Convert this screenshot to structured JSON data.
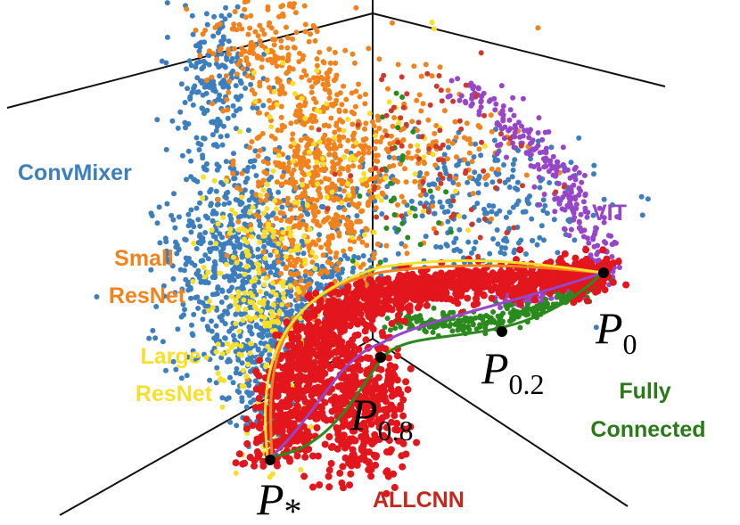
{
  "chart_data": {
    "type": "scatter",
    "projection": "3d",
    "grid": false,
    "series": [
      {
        "name": "ConvMixer",
        "color": "#3d7ebd"
      },
      {
        "name": "Small ResNet",
        "color": "#f2831c"
      },
      {
        "name": "Large ResNet",
        "color": "#f7df2a"
      },
      {
        "name": "VIT",
        "color": "#9745c9"
      },
      {
        "name": "Fully Connected",
        "color": "#2a8a1e"
      },
      {
        "name": "ALLCNN",
        "color": "#e2161c"
      }
    ],
    "extra_point_color": "#cd3a2a",
    "series_label_lines": {
      "convmixer": [
        "ConvMixer"
      ],
      "small_resnet": [
        "Small",
        "ResNet"
      ],
      "large_resnet": [
        "Large",
        "ResNet"
      ],
      "vit": [
        "VIT"
      ],
      "fully_connected": [
        "Fully",
        "Connected"
      ],
      "allcnn": [
        "ALLCNN"
      ]
    },
    "series_label_colors": {
      "convmixer": "#3d7ebd",
      "small_resnet": "#f2831c",
      "large_resnet": "#f7df2a",
      "vit": "#9745c9",
      "fully_connected": "#2a7a18",
      "allcnn": "#c4271c"
    },
    "marked_points": [
      {
        "id": "p0",
        "symbol": "P",
        "subscript": "0"
      },
      {
        "id": "p02",
        "symbol": "P",
        "subscript": "0.2"
      },
      {
        "id": "p08",
        "symbol": "P",
        "subscript": "0.8"
      },
      {
        "id": "pstar",
        "symbol": "P",
        "subscript": "*"
      }
    ],
    "trajectories": [
      {
        "name": "Small ResNet",
        "color": "#f2831c"
      },
      {
        "name": "Large ResNet",
        "color": "#f7df2a"
      },
      {
        "name": "VIT",
        "color": "#9745c9"
      },
      {
        "name": "Fully Connected",
        "color": "#2a8a1e"
      }
    ]
  }
}
